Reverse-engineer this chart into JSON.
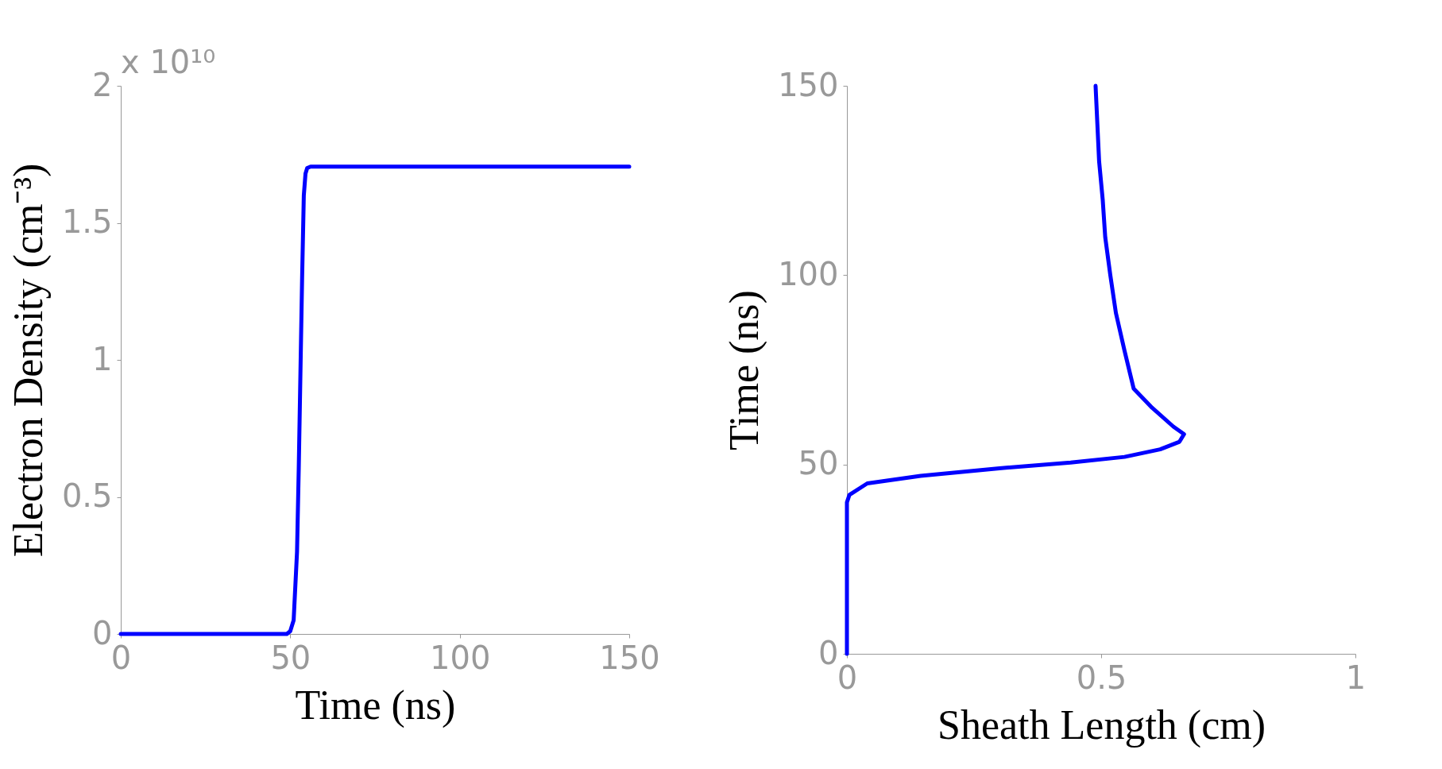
{
  "chart_data": [
    {
      "type": "line",
      "xlabel": "Time (ns)",
      "ylabel": "Electron Density (cm⁻³)",
      "annotations": [
        "x 10¹⁰"
      ],
      "xlim": [
        0,
        150
      ],
      "ylim": [
        0,
        2
      ],
      "xticks": [
        0,
        50,
        100,
        150
      ],
      "yticks": [
        0,
        0.5,
        1,
        1.5,
        2
      ],
      "line_style": "solid",
      "series": [
        {
          "color": "#0000ff",
          "x": [
            0,
            20,
            40,
            49,
            50,
            51,
            52,
            52.5,
            53,
            53.5,
            54,
            54.5,
            55,
            56,
            60,
            80,
            100,
            120,
            150
          ],
          "values": [
            0,
            0,
            0,
            0,
            0.01,
            0.05,
            0.3,
            0.6,
            0.95,
            1.3,
            1.6,
            1.68,
            1.7,
            1.705,
            1.705,
            1.705,
            1.705,
            1.705,
            1.705
          ]
        }
      ]
    },
    {
      "type": "line",
      "xlabel": "Sheath Length (cm)",
      "ylabel": "Time (ns)",
      "xlim": [
        0,
        1
      ],
      "ylim": [
        0,
        150
      ],
      "xticks": [
        0,
        0.5,
        1
      ],
      "yticks": [
        0,
        50,
        100,
        150
      ],
      "line_style": "solid",
      "series": [
        {
          "color": "#0000ff",
          "x": [
            0,
            0,
            0.005,
            0.04,
            0.145,
            0.3,
            0.44,
            0.546,
            0.616,
            0.654,
            0.663,
            0.642,
            0.6,
            0.564,
            0.546,
            0.529,
            0.518,
            0.508,
            0.503,
            0.496,
            0.489
          ],
          "values": [
            0,
            40,
            42,
            45,
            47,
            49,
            50.5,
            52,
            54,
            56,
            58,
            60,
            65,
            70,
            80,
            90,
            100,
            110,
            120,
            130,
            150
          ]
        }
      ]
    }
  ]
}
